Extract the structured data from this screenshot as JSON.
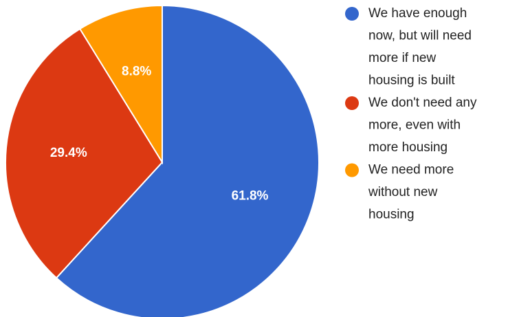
{
  "chart_data": {
    "type": "pie",
    "title": "",
    "start_angle_deg": 0,
    "direction": "clockwise",
    "slices": [
      {
        "label_lines": [
          "We have enough",
          "now, but will need",
          "more if new",
          "housing is built"
        ],
        "value": 61.8,
        "display": "61.8%",
        "color": "#3366cc"
      },
      {
        "label_lines": [
          "We don't need any",
          "more, even with",
          "more housing"
        ],
        "value": 29.4,
        "display": "29.4%",
        "color": "#dc3912"
      },
      {
        "label_lines": [
          "We need more",
          "without new",
          "housing"
        ],
        "value": 8.8,
        "display": "8.8%",
        "color": "#ff9900"
      }
    ],
    "legend_position": "right"
  }
}
